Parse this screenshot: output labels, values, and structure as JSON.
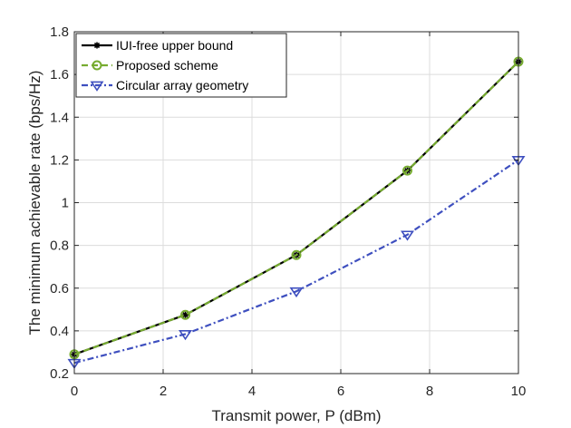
{
  "chart_data": {
    "type": "line",
    "xlabel": "Transmit power, P (dBm)",
    "ylabel": "The minimum achievable rate (bps/Hz)",
    "xlim": [
      0,
      10
    ],
    "ylim": [
      0.2,
      1.8
    ],
    "xticks": [
      0,
      2,
      4,
      6,
      8,
      10
    ],
    "xtick_labels": [
      "0",
      "2",
      "4",
      "6",
      "8",
      "10"
    ],
    "yticks": [
      0.2,
      0.4,
      0.6,
      0.8,
      1.0,
      1.2,
      1.4,
      1.6,
      1.8
    ],
    "ytick_labels": [
      "0.2",
      "0.4",
      "0.6",
      "0.8",
      "1",
      "1.2",
      "1.4",
      "1.6",
      "1.8"
    ],
    "grid": true,
    "legend_position": "top-left",
    "x": [
      0,
      2.5,
      5,
      7.5,
      10
    ],
    "series": [
      {
        "name": "IUI-free upper bound",
        "values": [
          0.29,
          0.475,
          0.755,
          1.15,
          1.66
        ],
        "color": "#000000",
        "line_style": "solid",
        "marker": "asterisk"
      },
      {
        "name": "Proposed scheme",
        "values": [
          0.29,
          0.475,
          0.755,
          1.15,
          1.66
        ],
        "color": "#77ac30",
        "line_style": "dashed",
        "marker": "circle"
      },
      {
        "name": "Circular array geometry",
        "values": [
          0.25,
          0.385,
          0.585,
          0.85,
          1.2
        ],
        "color": "#3e4fbf",
        "line_style": "dashdot",
        "marker": "triangle-down"
      }
    ]
  }
}
